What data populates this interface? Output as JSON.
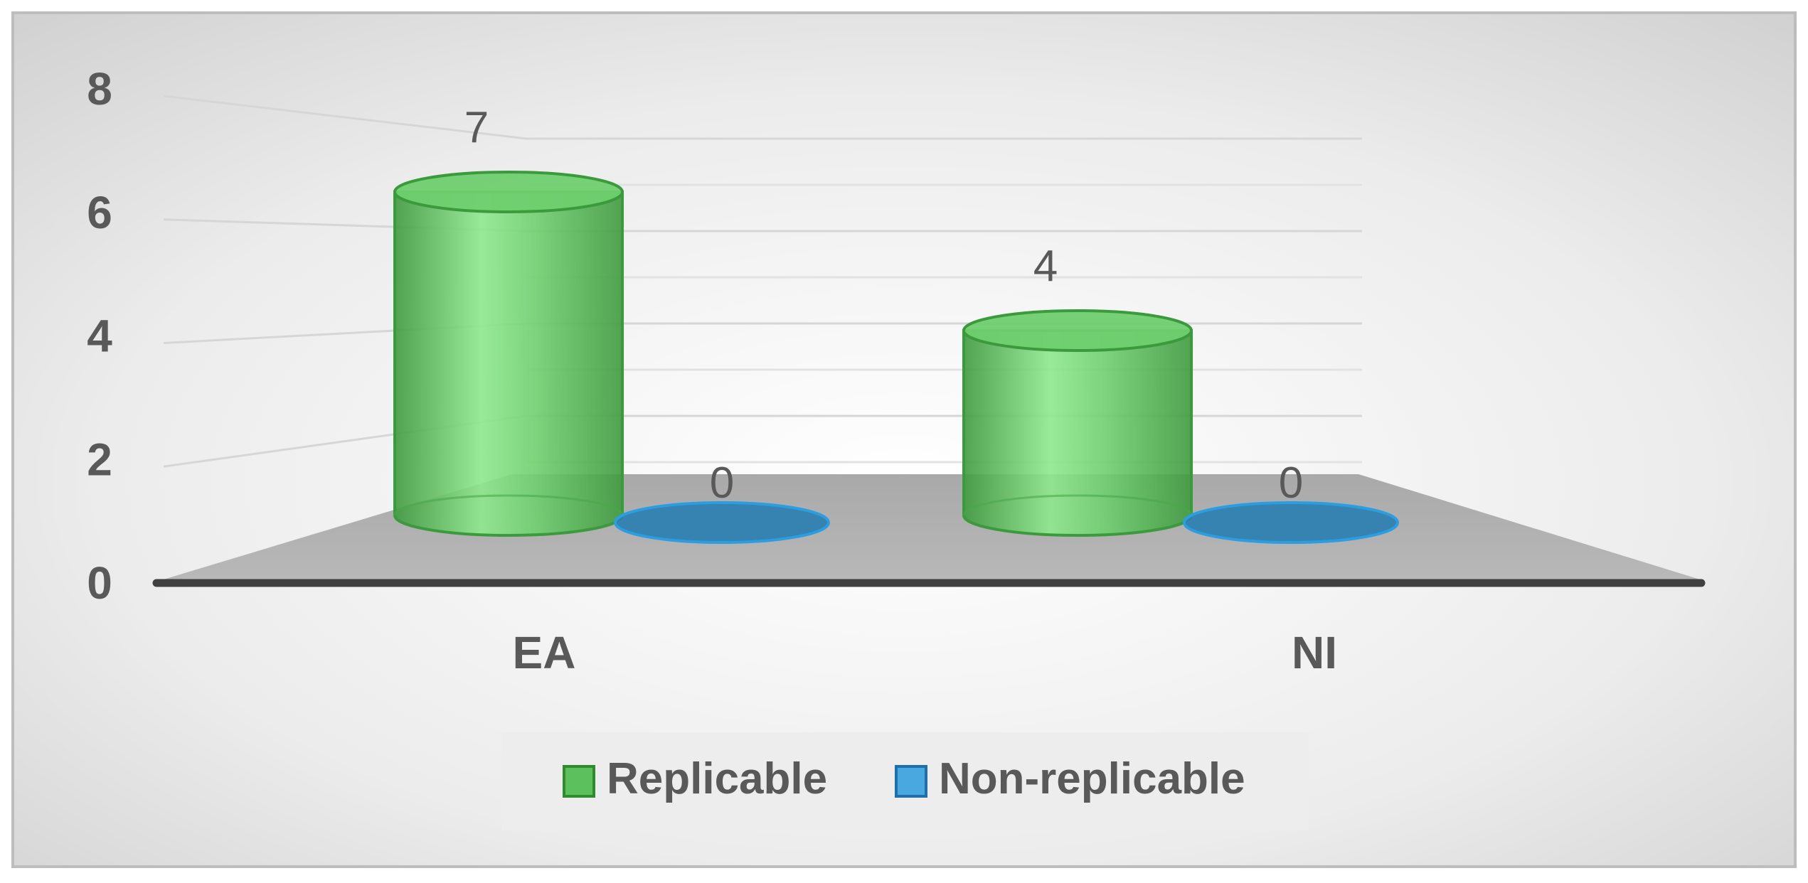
{
  "chart_data": {
    "type": "bar",
    "title": "",
    "xlabel": "",
    "ylabel": "",
    "categories": [
      "EA",
      "NI"
    ],
    "series": [
      {
        "name": "Replicable",
        "values": [
          7,
          4
        ],
        "color": "#5cc15c"
      },
      {
        "name": "Non-replicable",
        "values": [
          0,
          0
        ],
        "color": "#3a9ad6"
      }
    ],
    "ylim": [
      0,
      8
    ],
    "yticks": [
      0,
      2,
      4,
      6,
      8
    ],
    "grid": true,
    "legend_position": "bottom",
    "shape": "3d-cylinder"
  }
}
